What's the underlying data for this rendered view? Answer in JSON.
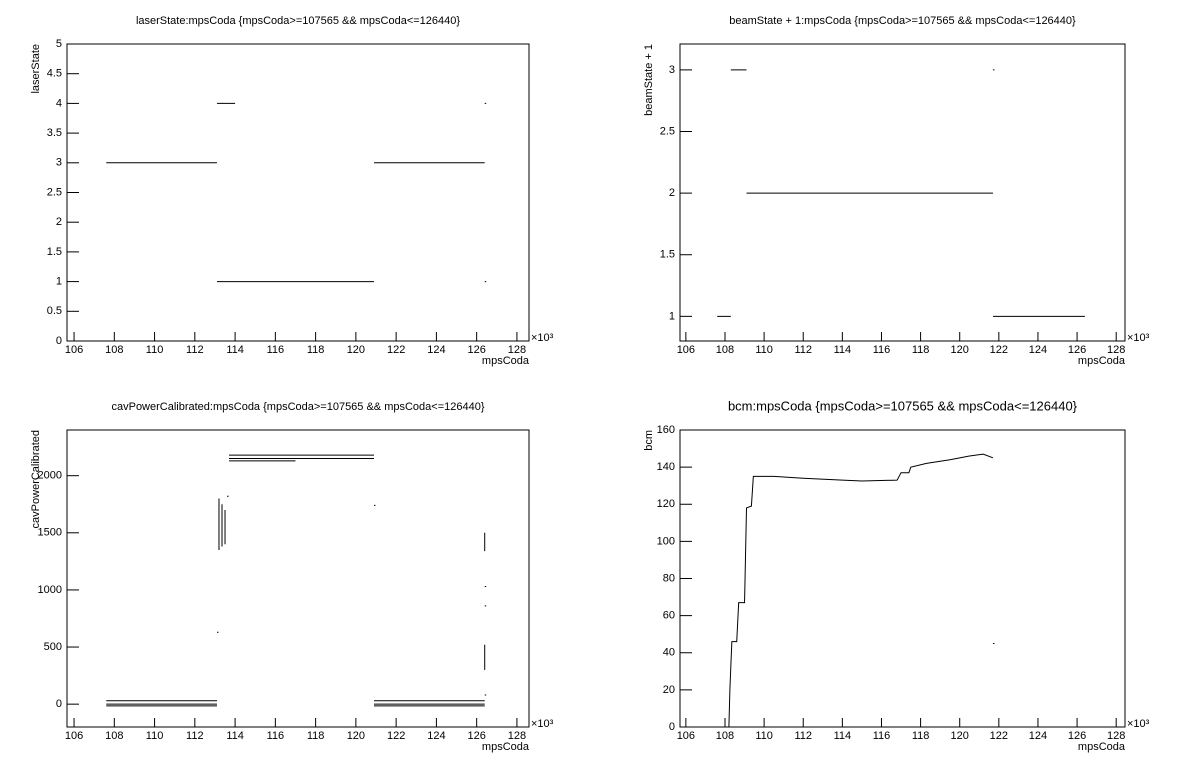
{
  "chart_data": [
    {
      "type": "line",
      "title": "laserState:mpsCoda {mpsCoda>=107565 && mpsCoda<=126440}",
      "x_label": "mpsCoda",
      "y_label": "laserState",
      "x_multiplier": "×10³",
      "color": "#000000",
      "xlim": [
        105.65,
        128.6
      ],
      "xticks": [
        106,
        108,
        110,
        112,
        114,
        116,
        118,
        120,
        122,
        124,
        126,
        128
      ],
      "ylim": [
        0,
        5
      ],
      "yticks": [
        0,
        0.5,
        1,
        1.5,
        2,
        2.5,
        3,
        3.5,
        4,
        4.5,
        5
      ],
      "x": [
        107.6,
        113.1,
        null,
        113.1,
        114.0,
        null,
        113.1,
        120.9,
        null,
        120.9,
        126.4,
        null,
        126.4,
        null,
        126.4
      ],
      "values": [
        3,
        3,
        null,
        4,
        4,
        null,
        1,
        1,
        null,
        3,
        3,
        null,
        4,
        null,
        1
      ]
    },
    {
      "type": "line",
      "title": "beamState + 1:mpsCoda {mpsCoda>=107565 && mpsCoda<=126440}",
      "x_label": "mpsCoda",
      "y_label": "beamState + 1",
      "x_multiplier": "×10³",
      "color": "#000000",
      "xlim": [
        105.7,
        128.45
      ],
      "xticks": [
        106,
        108,
        110,
        112,
        114,
        116,
        118,
        120,
        122,
        124,
        126,
        128
      ],
      "ylim": [
        0.8,
        3.21
      ],
      "yticks": [
        1,
        1.5,
        2,
        2.5,
        3
      ],
      "x": [
        107.6,
        108.3,
        null,
        108.3,
        109.1,
        null,
        109.1,
        121.7,
        null,
        121.7,
        null,
        121.7,
        126.4
      ],
      "values": [
        1,
        1,
        null,
        3,
        3,
        null,
        2,
        2,
        null,
        3,
        null,
        1,
        1
      ]
    },
    {
      "type": "line",
      "title": "cavPowerCalibrated:mpsCoda {mpsCoda>=107565 && mpsCoda<=126440}",
      "x_label": "mpsCoda",
      "y_label": "cavPowerCalibrated",
      "x_multiplier": "×10³",
      "color": "#000000",
      "xlim": [
        105.65,
        128.6
      ],
      "xticks": [
        106,
        108,
        110,
        112,
        114,
        116,
        118,
        120,
        122,
        124,
        126,
        128
      ],
      "ylim": [
        -200,
        2400
      ],
      "yticks": [
        0,
        500,
        1000,
        1500,
        2000
      ],
      "x": [
        107.6,
        113.1,
        null,
        107.6,
        113.1,
        null,
        107.6,
        113.1,
        null,
        113.2,
        113.2,
        null,
        113.35,
        113.35,
        null,
        113.5,
        113.5,
        null,
        113.6,
        null,
        113.1,
        null,
        113.7,
        120.9,
        null,
        113.7,
        120.9,
        null,
        113.7,
        117.0,
        null,
        120.9,
        null,
        120.9,
        126.4,
        null,
        120.9,
        126.4,
        null,
        120.9,
        126.4,
        null,
        126.4,
        126.4,
        null,
        126.4,
        null,
        126.4,
        null,
        126.4,
        126.4,
        null,
        126.4
      ],
      "values": [
        30,
        30,
        null,
        0,
        0,
        null,
        -15,
        -15,
        null,
        1350,
        1800,
        null,
        1380,
        1750,
        null,
        1400,
        1700,
        null,
        1820,
        null,
        630,
        null,
        2180,
        2180,
        null,
        2150,
        2150,
        null,
        2130,
        2130,
        null,
        1740,
        null,
        30,
        30,
        null,
        0,
        0,
        null,
        -15,
        -15,
        null,
        300,
        520,
        null,
        860,
        null,
        1030,
        null,
        1340,
        1500,
        null,
        80
      ]
    },
    {
      "type": "line",
      "title": "bcm:mpsCoda {mpsCoda>=107565 && mpsCoda<=126440}",
      "x_label": "mpsCoda",
      "y_label": "bcm",
      "x_multiplier": "×10³",
      "color": "#000000",
      "xlim": [
        105.7,
        128.45
      ],
      "xticks": [
        106,
        108,
        110,
        112,
        114,
        116,
        118,
        120,
        122,
        124,
        126,
        128
      ],
      "ylim": [
        0,
        160
      ],
      "yticks": [
        0,
        20,
        40,
        60,
        80,
        100,
        120,
        140,
        160
      ],
      "x": [
        108.0,
        108.2,
        108.25,
        108.35,
        108.6,
        108.7,
        109.0,
        109.1,
        109.35,
        109.45,
        110.5,
        112,
        114,
        115,
        116.8,
        117.0,
        117.4,
        117.5,
        118.3,
        119.5,
        120.5,
        121.2,
        121.7,
        null,
        121.7
      ],
      "values": [
        0,
        0,
        20,
        46,
        46,
        67,
        67,
        118,
        119,
        135,
        135,
        134,
        133,
        132.5,
        133,
        137,
        137,
        140,
        142,
        144,
        146,
        147,
        145,
        null,
        45
      ]
    }
  ]
}
